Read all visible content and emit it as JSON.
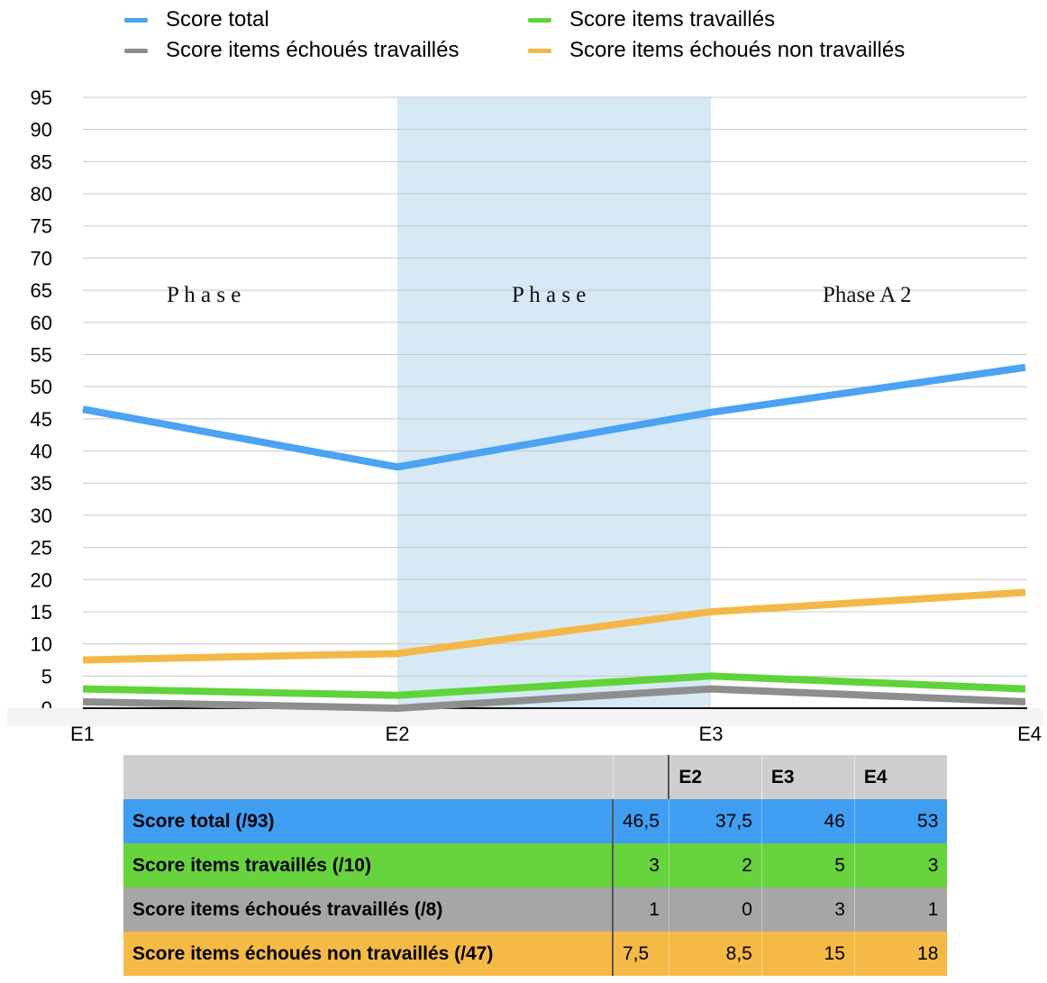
{
  "chart_data": {
    "type": "line",
    "categories": [
      "E1",
      "E2",
      "E3",
      "E4"
    ],
    "ylim": [
      0,
      95
    ],
    "yticks": [
      0,
      5,
      10,
      15,
      20,
      25,
      30,
      35,
      40,
      45,
      50,
      55,
      60,
      65,
      70,
      75,
      80,
      85,
      90,
      95
    ],
    "grid": true,
    "legend_position": "top",
    "series": [
      {
        "name": "Score total",
        "values": [
          46.5,
          37.5,
          46,
          53
        ],
        "color": "#4aa3f3"
      },
      {
        "name": "Score items travaillés",
        "values": [
          3,
          2,
          5,
          3
        ],
        "color": "#5fd43a"
      },
      {
        "name": "Score items échoués travaillés",
        "values": [
          1,
          0,
          3,
          1
        ],
        "color": "#8e8e8e"
      },
      {
        "name": "Score items échoués non travaillés",
        "values": [
          7.5,
          8.5,
          15,
          18
        ],
        "color": "#f3b848"
      }
    ],
    "shaded_region": {
      "from": "E2",
      "to": "E3",
      "color": "#d6e9f5"
    },
    "annotations": [
      "P h a s e",
      "P h a s e",
      "Phase A 2"
    ]
  },
  "table": {
    "headers": [
      "",
      "",
      "E2",
      "E3",
      "E4"
    ],
    "rows": [
      {
        "label": "Score total (/93)",
        "values": [
          "46,5",
          "37,5",
          "46",
          "53"
        ]
      },
      {
        "label": "Score items travaillés (/10)",
        "values": [
          "3",
          "2",
          "5",
          "3"
        ]
      },
      {
        "label": "Score items échoués travaillés (/8)",
        "values": [
          "1",
          "0",
          "3",
          "1"
        ]
      },
      {
        "label": "Score items échoués non travaillés (/47)",
        "values": [
          "7,5",
          "8,5",
          "15",
          "18"
        ]
      }
    ]
  }
}
